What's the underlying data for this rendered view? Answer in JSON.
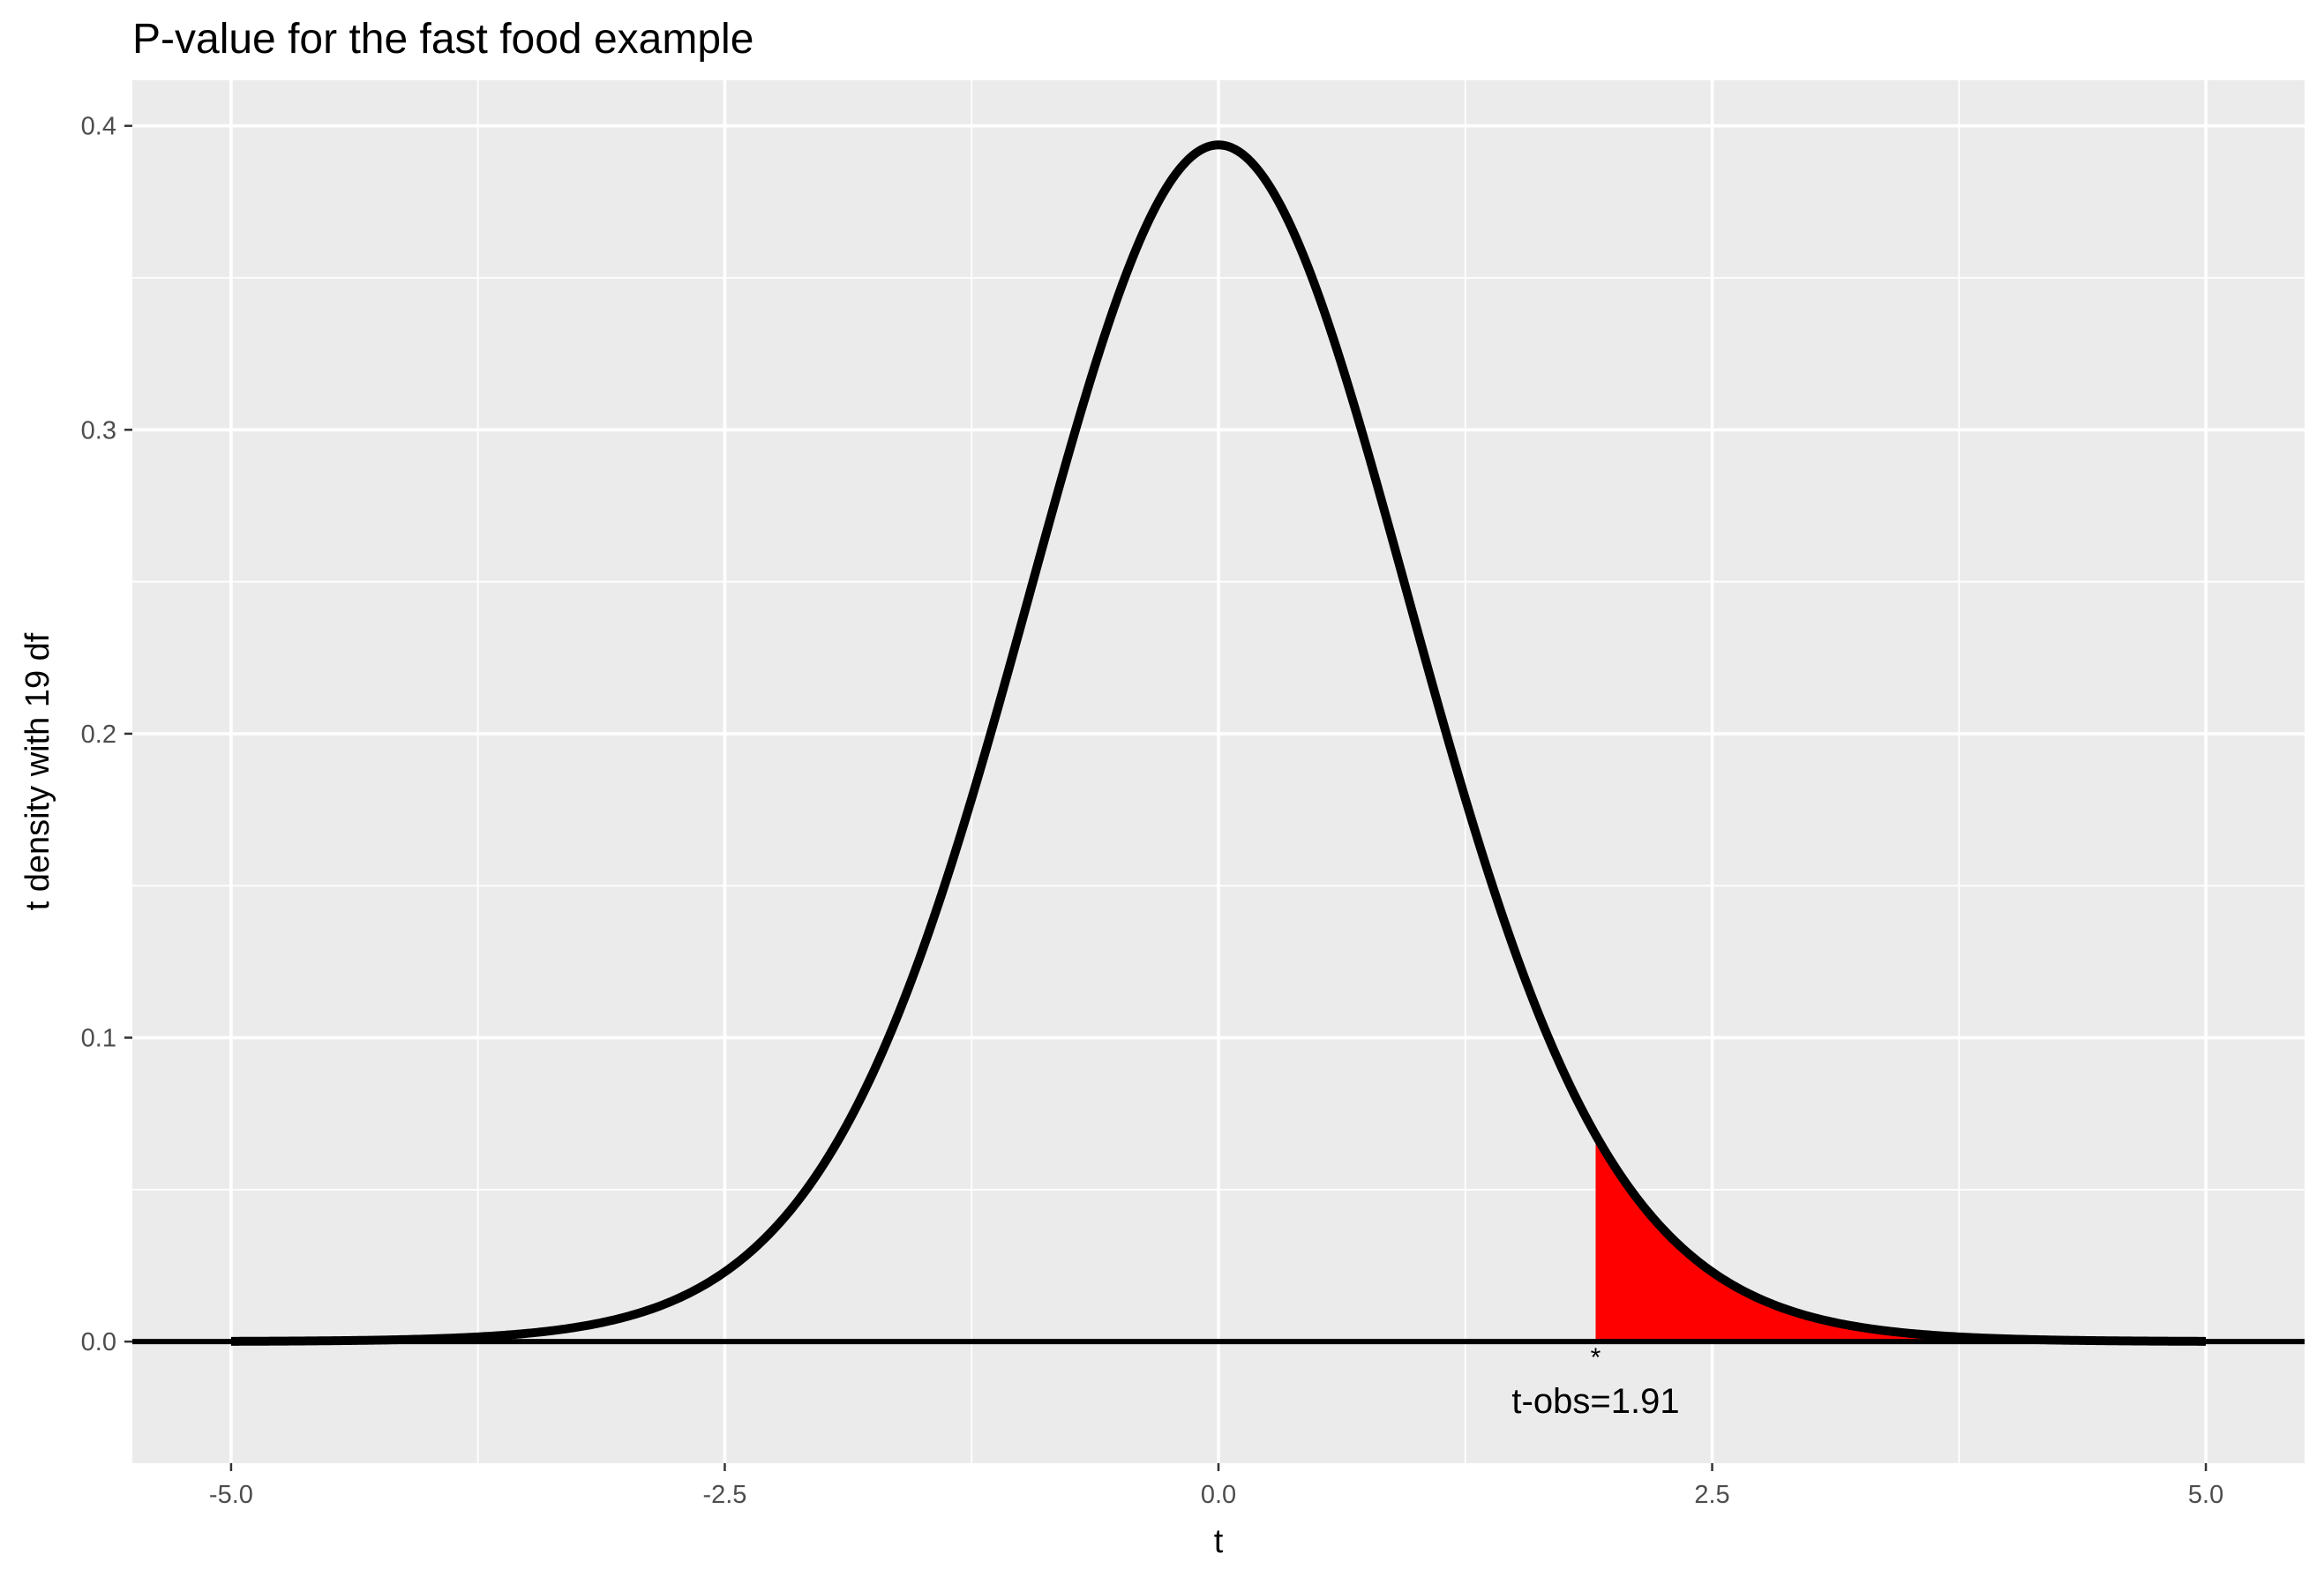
{
  "chart_data": {
    "type": "area",
    "title": "P-value for the fast food example",
    "xlabel": "t",
    "ylabel": "t density with 19 df",
    "xlim": [
      -5.5,
      5.5
    ],
    "ylim": [
      -0.04,
      0.415
    ],
    "x_ticks": [
      -5.0,
      -2.5,
      0.0,
      2.5,
      5.0
    ],
    "x_tick_labels": [
      "-5.0",
      "-2.5",
      "0.0",
      "2.5",
      "5.0"
    ],
    "y_ticks": [
      0.0,
      0.1,
      0.2,
      0.3,
      0.4
    ],
    "y_tick_labels": [
      "0.0",
      "0.1",
      "0.2",
      "0.3",
      "0.4"
    ],
    "grid": true,
    "series": [
      {
        "type": "line",
        "distribution": "t",
        "df": 19,
        "x_range": [
          -5,
          5
        ],
        "color": "#000000"
      },
      {
        "type": "area",
        "x_range": [
          1.91,
          5
        ],
        "color": "#ff0000"
      }
    ],
    "hline": {
      "y": 0,
      "color": "#000000"
    },
    "observed_t": 1.91,
    "annotation": {
      "text": "t-obs=1.91",
      "x": 1.91
    },
    "colors": {
      "panel_background": "#ebebeb",
      "grid": "#ffffff",
      "curve": "#000000",
      "shade": "#ff0000"
    }
  }
}
